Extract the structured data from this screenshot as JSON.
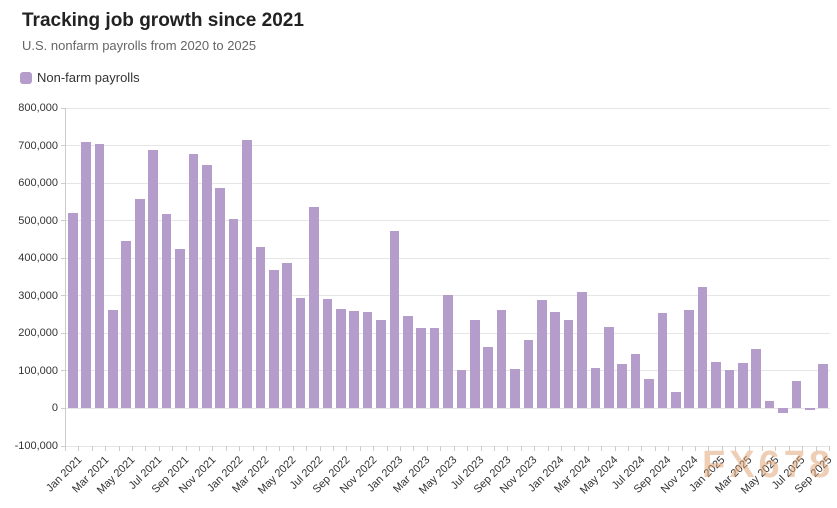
{
  "header": {
    "title": "Tracking job growth since 2021",
    "subtitle": "U.S. nonfarm payrolls from 2020 to 2025"
  },
  "legend": {
    "items": [
      {
        "label": "Non-farm payrolls",
        "color": "#b59dcb"
      }
    ]
  },
  "watermark": "FX678",
  "chart_data": {
    "type": "bar",
    "title": "Tracking job growth since 2021",
    "subtitle": "U.S. nonfarm payrolls from 2020 to 2025",
    "legend_entries": [
      "Non-farm payrolls"
    ],
    "legend_position": "top-left",
    "grid": "horizontal-only",
    "bar_color": "#b59dcb",
    "ylim": [
      -100000,
      800000
    ],
    "y_ticks": [
      {
        "value": 800000,
        "label": "800,000"
      },
      {
        "value": 700000,
        "label": "700,000"
      },
      {
        "value": 600000,
        "label": "600,000"
      },
      {
        "value": 500000,
        "label": "500,000"
      },
      {
        "value": 400000,
        "label": "400,000"
      },
      {
        "value": 300000,
        "label": "300,000"
      },
      {
        "value": 200000,
        "label": "200,000"
      },
      {
        "value": 100000,
        "label": "100,000"
      },
      {
        "value": 0,
        "label": "0"
      },
      {
        "value": -100000,
        "label": "-100,000"
      }
    ],
    "x_label_every": 2,
    "categories": [
      "Jan 2021",
      "Feb 2021",
      "Mar 2021",
      "Apr 2021",
      "May 2021",
      "Jun 2021",
      "Jul 2021",
      "Aug 2021",
      "Sep 2021",
      "Oct 2021",
      "Nov 2021",
      "Dec 2021",
      "Jan 2022",
      "Feb 2022",
      "Mar 2022",
      "Apr 2022",
      "May 2022",
      "Jun 2022",
      "Jul 2022",
      "Aug 2022",
      "Sep 2022",
      "Oct 2022",
      "Nov 2022",
      "Dec 2022",
      "Jan 2023",
      "Feb 2023",
      "Mar 2023",
      "Apr 2023",
      "May 2023",
      "Jun 2023",
      "Jul 2023",
      "Aug 2023",
      "Sep 2023",
      "Oct 2023",
      "Nov 2023",
      "Dec 2023",
      "Jan 2024",
      "Feb 2024",
      "Mar 2024",
      "Apr 2024",
      "May 2024",
      "Jun 2024",
      "Jul 2024",
      "Aug 2024",
      "Sep 2024",
      "Oct 2024",
      "Nov 2024",
      "Dec 2024",
      "Jan 2025",
      "Feb 2025",
      "Mar 2025",
      "Apr 2025",
      "May 2025",
      "Jun 2025",
      "Jul 2025",
      "Aug 2025",
      "Sep 2025"
    ],
    "values": [
      520000,
      710000,
      704000,
      263000,
      447000,
      557000,
      689000,
      517000,
      424000,
      677000,
      647000,
      588000,
      504000,
      714000,
      430000,
      368000,
      386000,
      293000,
      537000,
      292000,
      266000,
      260000,
      257000,
      236000,
      472000,
      246000,
      214000,
      214000,
      303000,
      102000,
      236000,
      164000,
      262000,
      105000,
      182000,
      290000,
      256000,
      236000,
      310000,
      108000,
      216000,
      118000,
      144000,
      78000,
      255000,
      44000,
      261000,
      323000,
      125000,
      102000,
      120000,
      158000,
      19000,
      -13000,
      72000,
      -4000,
      119000
    ]
  }
}
